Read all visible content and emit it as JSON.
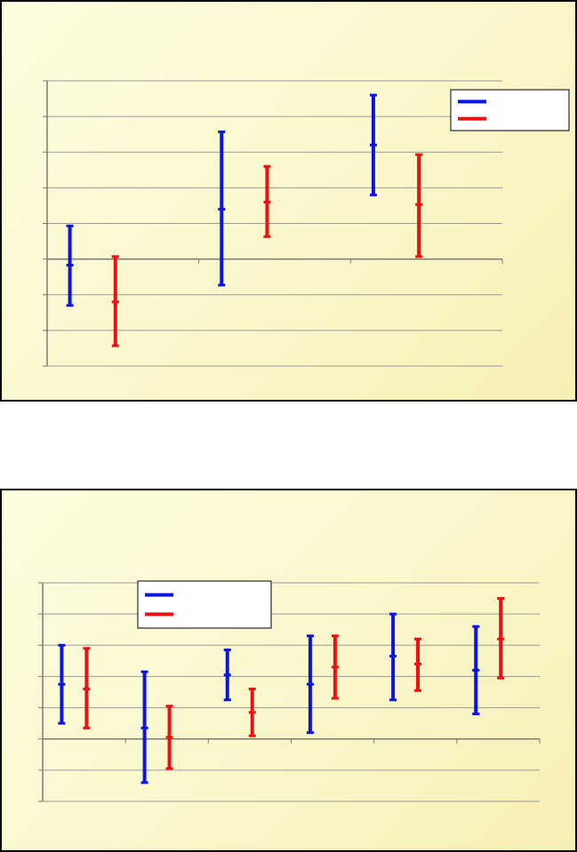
{
  "colors": {
    "series_1": "#0a14e6",
    "series_2": "#ee1010",
    "grid": "#9a9a9a",
    "axis": "#7a7a7a",
    "panel_border": "#000000",
    "panel_background": "#fbf8cf"
  },
  "chart_data": [
    {
      "type": "error-bar",
      "title": "",
      "xlabel": "",
      "ylabel": "",
      "categories": [
        "",
        "",
        ""
      ],
      "ylim": [
        -3,
        5
      ],
      "grid": true,
      "legend": "top-right",
      "series": [
        {
          "color": "#0a14e6",
          "values": [
            {
              "low": -1.3,
              "mid": -0.17,
              "high": 0.93
            },
            {
              "low": -0.73,
              "mid": 1.4,
              "high": 3.57
            },
            {
              "low": 1.8,
              "mid": 3.2,
              "high": 4.6
            }
          ]
        },
        {
          "color": "#ee1010",
          "values": [
            {
              "low": -2.43,
              "mid": -1.2,
              "high": 0.07
            },
            {
              "low": 0.63,
              "mid": 1.6,
              "high": 2.6
            },
            {
              "low": 0.07,
              "mid": 1.53,
              "high": 2.93
            }
          ]
        }
      ]
    },
    {
      "type": "error-bar",
      "title": "",
      "xlabel": "",
      "ylabel": "",
      "categories": [
        "",
        "",
        "",
        "",
        "",
        ""
      ],
      "ylim": [
        -2,
        5
      ],
      "grid": true,
      "legend": "top-left",
      "series": [
        {
          "color": "#0a14e6",
          "values": [
            {
              "low": 0.5,
              "mid": 1.75,
              "high": 3.0
            },
            {
              "low": -1.4,
              "mid": 0.35,
              "high": 2.15
            },
            {
              "low": 1.25,
              "mid": 2.05,
              "high": 2.85
            },
            {
              "low": 0.2,
              "mid": 1.75,
              "high": 3.3
            },
            {
              "low": 1.25,
              "mid": 2.65,
              "high": 4.0
            },
            {
              "low": 0.8,
              "mid": 2.2,
              "high": 3.6
            }
          ]
        },
        {
          "color": "#ee1010",
          "values": [
            {
              "low": 0.35,
              "mid": 1.6,
              "high": 2.9
            },
            {
              "low": -0.95,
              "mid": 0.05,
              "high": 1.05
            },
            {
              "low": 0.1,
              "mid": 0.85,
              "high": 1.6
            },
            {
              "low": 1.3,
              "mid": 2.3,
              "high": 3.3
            },
            {
              "low": 1.55,
              "mid": 2.4,
              "high": 3.2
            },
            {
              "low": 1.95,
              "mid": 3.2,
              "high": 4.5
            }
          ]
        }
      ]
    }
  ]
}
